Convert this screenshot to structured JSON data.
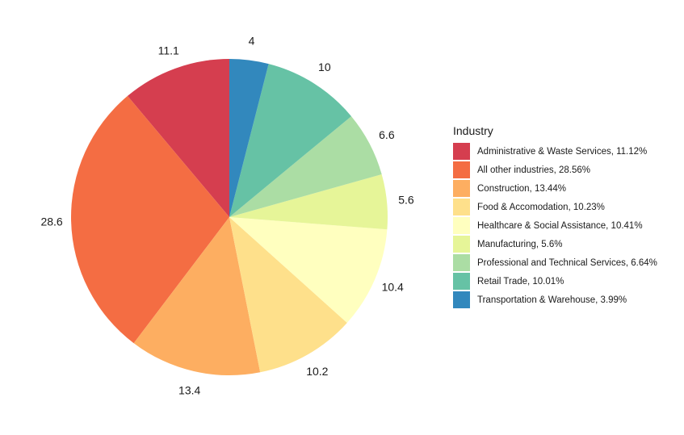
{
  "chart_data": {
    "type": "pie",
    "legend_title": "Industry",
    "legend_position": "right",
    "start": "top",
    "direction": "counterclockwise",
    "slices": [
      {
        "category": "Administrative & Waste Services",
        "legend_label": "Administrative & Waste Services, 11.12%",
        "value": 11.12,
        "label": "11.1",
        "color": "#D53E4F"
      },
      {
        "category": "All other industries",
        "legend_label": "All other industries, 28.56%",
        "value": 28.56,
        "label": "28.6",
        "color": "#F46D43"
      },
      {
        "category": "Construction",
        "legend_label": "Construction, 13.44%",
        "value": 13.44,
        "label": "13.4",
        "color": "#FDAE61"
      },
      {
        "category": "Food & Accomodation",
        "legend_label": "Food & Accomodation, 10.23%",
        "value": 10.23,
        "label": "10.2",
        "color": "#FEE08B"
      },
      {
        "category": "Healthcare & Social Assistance",
        "legend_label": "Healthcare & Social Assistance, 10.41%",
        "value": 10.41,
        "label": "10.4",
        "color": "#FFFFBF"
      },
      {
        "category": "Manufacturing",
        "legend_label": "Manufacturing, 5.6%",
        "value": 5.6,
        "label": "5.6",
        "color": "#E6F598"
      },
      {
        "category": "Professional and Technical Services",
        "legend_label": "Professional and Technical Services, 6.64%",
        "value": 6.64,
        "label": "6.6",
        "color": "#ABDDA4"
      },
      {
        "category": "Retail Trade",
        "legend_label": "Retail Trade, 10.01%",
        "value": 10.01,
        "label": "10",
        "color": "#66C2A5"
      },
      {
        "category": "Transportation & Warehouse",
        "legend_label": "Transportation & Warehouse, 3.99%",
        "value": 3.99,
        "label": "4",
        "color": "#3288BD"
      }
    ]
  }
}
